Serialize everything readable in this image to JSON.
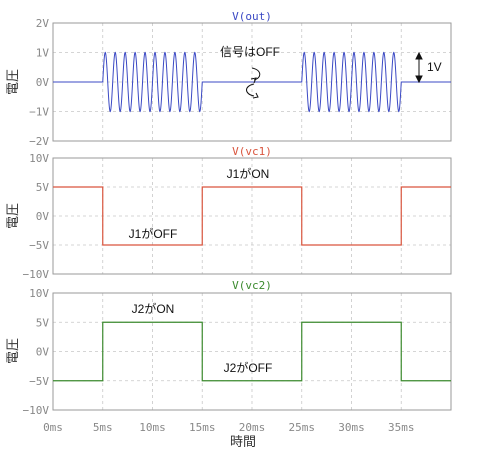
{
  "chart_data": [
    {
      "type": "line",
      "title": "V(out)",
      "ylabel": "電圧",
      "ylim": [
        -2,
        2
      ],
      "yticks": [
        "2V",
        "1V",
        "0V",
        "−1V",
        "−2V"
      ],
      "color": "#3b49c4",
      "signal": "burst",
      "amplitude": 1,
      "cycles_per_burst": 10,
      "bursts_ms": [
        [
          5,
          15
        ],
        [
          25,
          35
        ]
      ],
      "annotations": {
        "off_label": "信号はOFF",
        "amp_label": "1V"
      }
    },
    {
      "type": "line",
      "title": "V(vc1)",
      "ylabel": "電圧",
      "ylim": [
        -10,
        10
      ],
      "yticks": [
        "10V",
        "5V",
        "0V",
        "−5V",
        "−10V"
      ],
      "color": "#d9553e",
      "x": [
        0,
        5,
        5,
        15,
        15,
        25,
        25,
        35,
        35,
        40
      ],
      "y": [
        5,
        5,
        -5,
        -5,
        5,
        5,
        -5,
        -5,
        5,
        5
      ],
      "annotations": {
        "on_label": "J1がON",
        "off_label": "J1がOFF"
      }
    },
    {
      "type": "line",
      "title": "V(vc2)",
      "ylabel": "電圧",
      "ylim": [
        -10,
        10
      ],
      "yticks": [
        "10V",
        "5V",
        "0V",
        "−5V",
        "−10V"
      ],
      "color": "#3b8a2e",
      "x": [
        0,
        5,
        5,
        15,
        15,
        25,
        25,
        35,
        35,
        40
      ],
      "y": [
        -5,
        -5,
        5,
        5,
        -5,
        -5,
        5,
        5,
        -5,
        -5
      ],
      "annotations": {
        "on_label": "J2がON",
        "off_label": "J2がOFF"
      }
    }
  ],
  "xaxis": {
    "label": "時間",
    "xlim": [
      0,
      40
    ],
    "ticks": [
      "0ms",
      "5ms",
      "10ms",
      "15ms",
      "20ms",
      "25ms",
      "30ms",
      "35ms"
    ]
  }
}
